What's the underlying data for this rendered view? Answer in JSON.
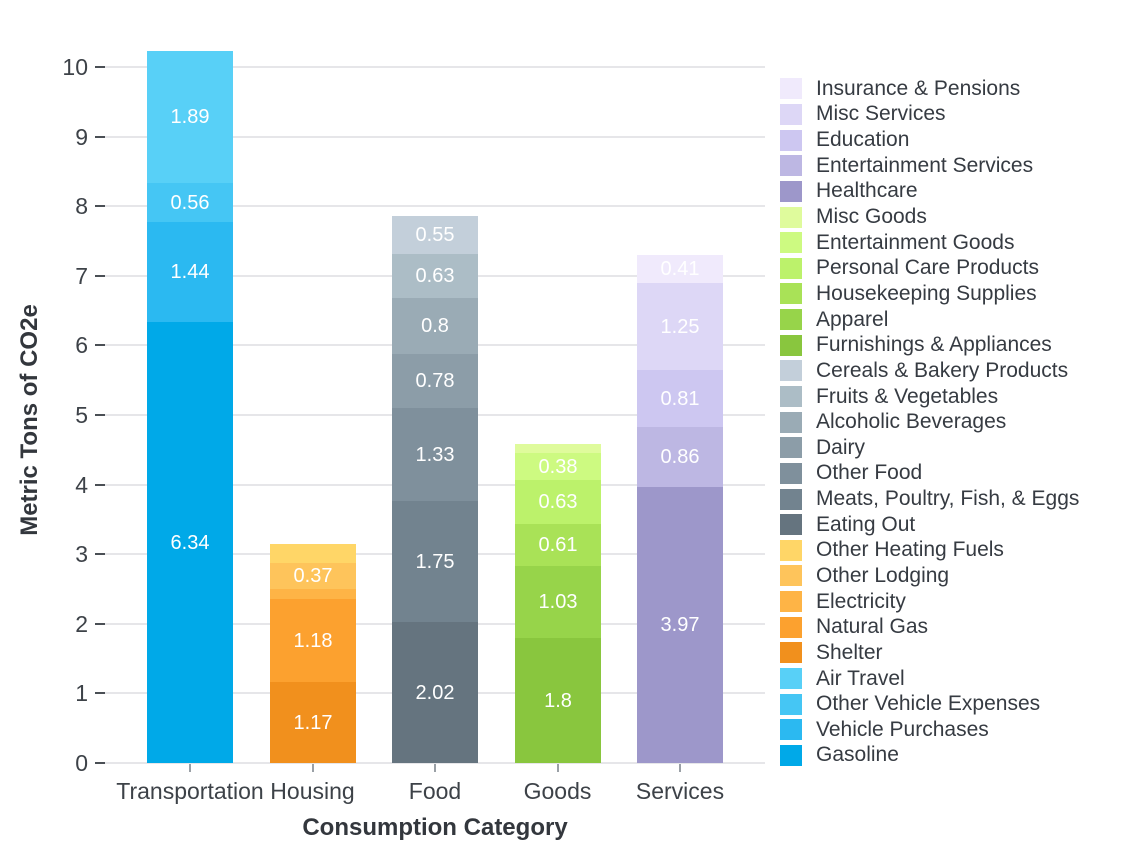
{
  "chart_data": {
    "type": "bar",
    "stacked": true,
    "title": "",
    "xlabel": "Consumption Category",
    "ylabel": "Metric Tons of CO2e",
    "categories": [
      "Transportation",
      "Housing",
      "Food",
      "Goods",
      "Services"
    ],
    "y_ticks": [
      0,
      1,
      2,
      3,
      4,
      5,
      6,
      7,
      8,
      9,
      10
    ],
    "ylim": [
      0,
      10.3
    ],
    "grid": true,
    "legend_position": "right",
    "bars": [
      {
        "category": "Transportation",
        "total": 10.23,
        "segments": [
          {
            "name": "Gasoline",
            "value": 6.34,
            "label": "6.34",
            "color": "#00A9E8"
          },
          {
            "name": "Vehicle Purchases",
            "value": 1.44,
            "label": "1.44",
            "color": "#2BB9F1"
          },
          {
            "name": "Other Vehicle Expenses",
            "value": 0.56,
            "label": "0.56",
            "color": "#45C6F4"
          },
          {
            "name": "Air Travel",
            "value": 1.89,
            "label": "1.89",
            "color": "#58D0F7"
          }
        ]
      },
      {
        "category": "Housing",
        "total": 3.14,
        "segments": [
          {
            "name": "Shelter",
            "value": 1.17,
            "label": "1.17",
            "color": "#F1901D"
          },
          {
            "name": "Natural Gas",
            "value": 1.18,
            "label": "1.18",
            "color": "#FCA12F"
          },
          {
            "name": "Electricity",
            "value": 0.15,
            "label": "",
            "color": "#FEB446"
          },
          {
            "name": "Other Lodging",
            "value": 0.37,
            "label": "0.37",
            "color": "#FEC45B"
          },
          {
            "name": "Other Heating Fuels",
            "value": 0.27,
            "label": "",
            "color": "#FFD667"
          }
        ]
      },
      {
        "category": "Food",
        "total": 7.86,
        "segments": [
          {
            "name": "Eating Out",
            "value": 2.02,
            "label": "2.02",
            "color": "#65747F"
          },
          {
            "name": "Meats, Poultry, Fish, & Eggs",
            "value": 1.75,
            "label": "1.75",
            "color": "#72838F"
          },
          {
            "name": "Other Food",
            "value": 1.33,
            "label": "1.33",
            "color": "#7F909C"
          },
          {
            "name": "Dairy",
            "value": 0.78,
            "label": "0.78",
            "color": "#8C9DA8"
          },
          {
            "name": "Alcoholic Beverages",
            "value": 0.8,
            "label": "0.8",
            "color": "#9AABB5"
          },
          {
            "name": "Fruits & Vegetables",
            "value": 0.63,
            "label": "0.63",
            "color": "#ACBDC6"
          },
          {
            "name": "Cereals & Bakery Products",
            "value": 0.55,
            "label": "0.55",
            "color": "#C3CFDA"
          }
        ]
      },
      {
        "category": "Goods",
        "total": 4.58,
        "segments": [
          {
            "name": "Furnishings & Appliances",
            "value": 1.8,
            "label": "1.8",
            "color": "#89C63E"
          },
          {
            "name": "Apparel",
            "value": 1.03,
            "label": "1.03",
            "color": "#97D44A"
          },
          {
            "name": "Housekeeping Supplies",
            "value": 0.61,
            "label": "0.61",
            "color": "#A9E257"
          },
          {
            "name": "Personal Care Products",
            "value": 0.63,
            "label": "0.63",
            "color": "#BCF26B"
          },
          {
            "name": "Entertainment Goods",
            "value": 0.38,
            "label": "0.38",
            "color": "#CDFA81"
          },
          {
            "name": "Misc Goods",
            "value": 0.13,
            "label": "",
            "color": "#DFFB9C"
          }
        ]
      },
      {
        "category": "Services",
        "total": 7.3,
        "segments": [
          {
            "name": "Healthcare",
            "value": 3.97,
            "label": "3.97",
            "color": "#9D97CA"
          },
          {
            "name": "Entertainment Services",
            "value": 0.86,
            "label": "0.86",
            "color": "#BDB7E3"
          },
          {
            "name": "Education",
            "value": 0.81,
            "label": "0.81",
            "color": "#CDC7F1"
          },
          {
            "name": "Misc Services",
            "value": 1.25,
            "label": "1.25",
            "color": "#DDD7F6"
          },
          {
            "name": "Insurance & Pensions",
            "value": 0.41,
            "label": "0.41",
            "color": "#F0EAFC"
          }
        ]
      }
    ],
    "legend": [
      {
        "label": "Insurance & Pensions",
        "color": "#F0EAFC"
      },
      {
        "label": "Misc Services",
        "color": "#DDD7F6"
      },
      {
        "label": "Education",
        "color": "#CDC7F1"
      },
      {
        "label": "Entertainment Services",
        "color": "#BDB7E3"
      },
      {
        "label": "Healthcare",
        "color": "#9D97CA"
      },
      {
        "label": "Misc Goods",
        "color": "#DFFB9C"
      },
      {
        "label": "Entertainment Goods",
        "color": "#CDFA81"
      },
      {
        "label": "Personal Care Products",
        "color": "#BCF26B"
      },
      {
        "label": "Housekeeping Supplies",
        "color": "#A9E257"
      },
      {
        "label": "Apparel",
        "color": "#97D44A"
      },
      {
        "label": "Furnishings & Appliances",
        "color": "#89C63E"
      },
      {
        "label": "Cereals & Bakery Products",
        "color": "#C3CFDA"
      },
      {
        "label": "Fruits & Vegetables",
        "color": "#ACBDC6"
      },
      {
        "label": "Alcoholic Beverages",
        "color": "#9AABB5"
      },
      {
        "label": "Dairy",
        "color": "#8C9DA8"
      },
      {
        "label": "Other Food",
        "color": "#7F909C"
      },
      {
        "label": "Meats, Poultry, Fish, & Eggs",
        "color": "#72838F"
      },
      {
        "label": "Eating Out",
        "color": "#65747F"
      },
      {
        "label": "Other Heating Fuels",
        "color": "#FFD667"
      },
      {
        "label": "Other Lodging",
        "color": "#FEC45B"
      },
      {
        "label": "Electricity",
        "color": "#FEB446"
      },
      {
        "label": "Natural Gas",
        "color": "#FCA12F"
      },
      {
        "label": "Shelter",
        "color": "#F1901D"
      },
      {
        "label": "Air Travel",
        "color": "#58D0F7"
      },
      {
        "label": "Other Vehicle Expenses",
        "color": "#45C6F4"
      },
      {
        "label": "Vehicle Purchases",
        "color": "#2BB9F1"
      },
      {
        "label": "Gasoline",
        "color": "#00A9E8"
      }
    ]
  }
}
